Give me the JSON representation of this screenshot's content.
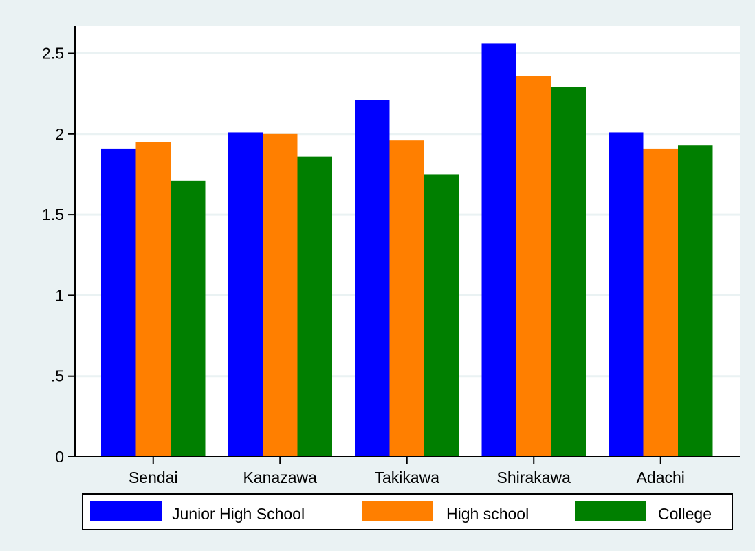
{
  "chart_data": {
    "type": "bar",
    "categories": [
      "Sendai",
      "Kanazawa",
      "Takikawa",
      "Shirakawa",
      "Adachi"
    ],
    "series": [
      {
        "name": "Junior High School",
        "color": "#0000ff",
        "values": [
          1.91,
          2.01,
          2.21,
          2.56,
          2.01
        ]
      },
      {
        "name": "High school",
        "color": "#ff7f00",
        "values": [
          1.95,
          2.0,
          1.96,
          2.36,
          1.91
        ]
      },
      {
        "name": "College",
        "color": "#007f00",
        "values": [
          1.71,
          1.86,
          1.75,
          2.29,
          1.93
        ]
      }
    ],
    "ylim": [
      0,
      2.5
    ],
    "yticks": [
      0,
      0.5,
      1,
      1.5,
      2,
      2.5
    ],
    "ytick_labels": [
      "0",
      ".5",
      "1",
      "1.5",
      "2",
      "2.5"
    ],
    "grid": true,
    "legend_position": "bottom",
    "title": "",
    "xlabel": "",
    "ylabel": "",
    "colors": {
      "outer_background": "#eaf2f3",
      "plot_background": "#ffffff",
      "grid": "#eaf2f3",
      "axis": "#000000"
    }
  }
}
